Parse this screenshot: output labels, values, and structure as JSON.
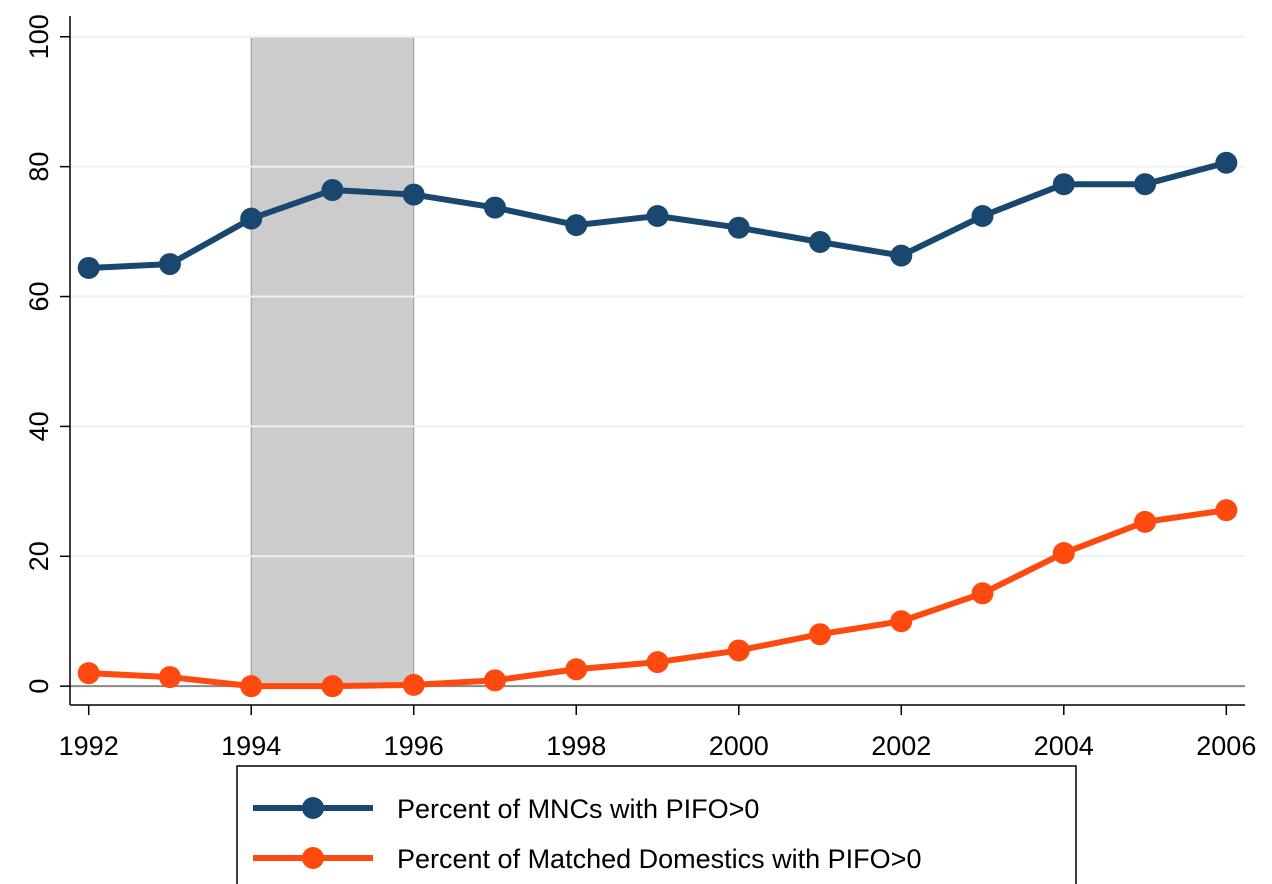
{
  "chart_data": {
    "type": "line",
    "x": [
      1992,
      1993,
      1994,
      1995,
      1996,
      1997,
      1998,
      1999,
      2000,
      2001,
      2002,
      2003,
      2004,
      2005,
      2006
    ],
    "series": [
      {
        "name": "Percent of MNCs with PIFO>0",
        "color": "#1a476f",
        "values": [
          64.4,
          65.0,
          72.0,
          76.4,
          75.7,
          73.7,
          71.0,
          72.4,
          70.6,
          68.4,
          66.3,
          72.4,
          77.3,
          77.3,
          80.6
        ]
      },
      {
        "name": "Percent of Matched Domestics with PIFO>0",
        "color": "#ff4a0f",
        "values": [
          2.0,
          1.4,
          0,
          0,
          0.2,
          0.9,
          2.6,
          3.7,
          5.5,
          8.0,
          10.0,
          14.3,
          20.5,
          25.3,
          27.1
        ]
      }
    ],
    "shaded_x": [
      1994,
      1996
    ],
    "xlim": [
      1991.77,
      2006.23
    ],
    "xticks": [
      1992,
      1994,
      1996,
      1998,
      2000,
      2002,
      2004,
      2006
    ],
    "ylim": [
      -2.9,
      103.2
    ],
    "yticks": [
      0,
      20,
      40,
      60,
      80,
      100
    ],
    "grid": true,
    "legend": "bottom"
  }
}
